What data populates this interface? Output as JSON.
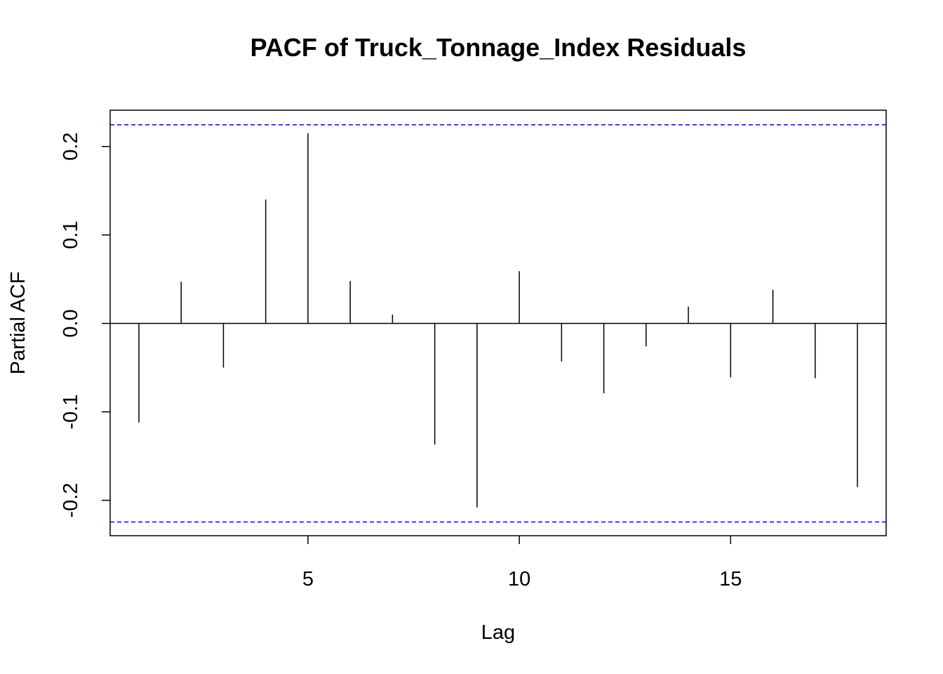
{
  "chart_data": {
    "type": "bar",
    "title": "PACF of Truck_Tonnage_Index Residuals",
    "xlabel": "Lag",
    "ylabel": "Partial ACF",
    "xlim": [
      0.32,
      18.68
    ],
    "ylim": [
      -0.24,
      0.241
    ],
    "xticks": [
      5,
      10,
      15
    ],
    "yticks": [
      -0.2,
      -0.1,
      0.0,
      0.1,
      0.2
    ],
    "ytick_labels": [
      "-0.2",
      "-0.1",
      "0.0",
      "0.1",
      "0.2"
    ],
    "x": [
      1,
      2,
      3,
      4,
      5,
      6,
      7,
      8,
      9,
      10,
      11,
      12,
      13,
      14,
      15,
      16,
      17,
      18
    ],
    "values": [
      -0.112,
      0.047,
      -0.05,
      0.14,
      0.215,
      0.048,
      0.01,
      -0.137,
      -0.208,
      0.059,
      -0.043,
      -0.079,
      -0.026,
      0.019,
      -0.061,
      0.038,
      -0.062,
      -0.185
    ],
    "confidence_bounds": [
      0.2245,
      -0.2245
    ],
    "colors": {
      "bars": "#000000",
      "confidence_lines": "#0000ff",
      "zero_line": "#000000",
      "axes": "#000000"
    },
    "grid": false,
    "legend": "none"
  }
}
